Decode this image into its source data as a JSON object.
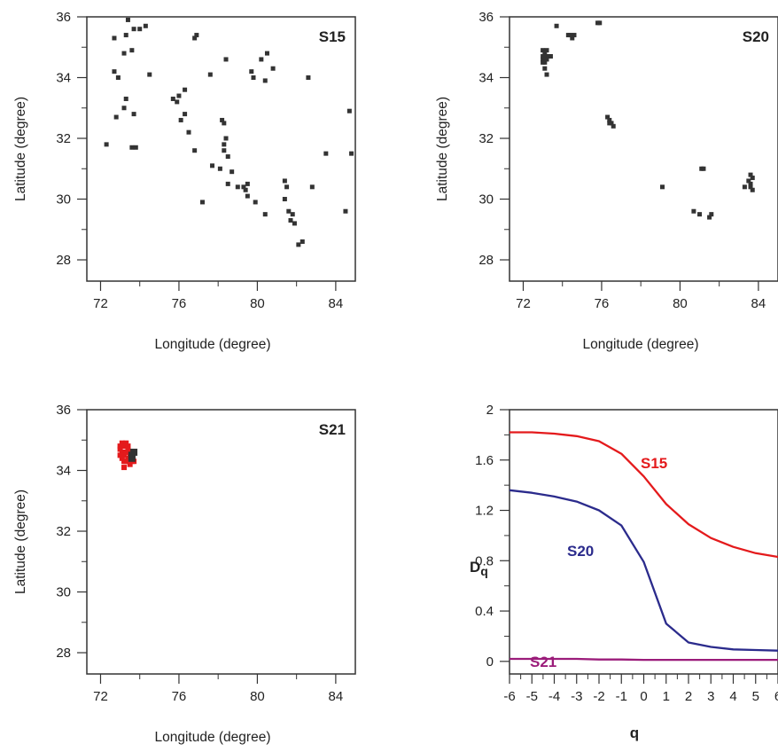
{
  "colors": {
    "axis": "#333333",
    "dot_dark": "#333333",
    "dot_red": "#e41a1c",
    "s15": "#e41a1c",
    "s20": "#2b2b8c",
    "s21": "#9b1c7a"
  },
  "chart_data": [
    {
      "type": "scatter",
      "title": "S15",
      "xlabel": "Longitude (degree)",
      "ylabel": "Latitude (degree)",
      "xlim": [
        71.3,
        85
      ],
      "ylim": [
        27.3,
        36
      ],
      "xticks": [
        "72",
        "76",
        "80",
        "84"
      ],
      "yticks": [
        "28",
        "30",
        "32",
        "34",
        "36"
      ],
      "grid": false,
      "points": [
        [
          73.4,
          35.9
        ],
        [
          73.7,
          35.6
        ],
        [
          74.3,
          35.7
        ],
        [
          74.0,
          35.6
        ],
        [
          72.7,
          35.3
        ],
        [
          73.3,
          35.4
        ],
        [
          73.6,
          34.9
        ],
        [
          73.2,
          34.8
        ],
        [
          76.8,
          35.3
        ],
        [
          76.9,
          35.4
        ],
        [
          80.5,
          34.8
        ],
        [
          80.2,
          34.6
        ],
        [
          78.4,
          34.6
        ],
        [
          79.7,
          34.2
        ],
        [
          79.8,
          34.0
        ],
        [
          80.8,
          34.3
        ],
        [
          82.6,
          34.0
        ],
        [
          72.7,
          34.2
        ],
        [
          72.9,
          34.0
        ],
        [
          74.5,
          34.1
        ],
        [
          77.6,
          34.1
        ],
        [
          80.4,
          33.9
        ],
        [
          76.3,
          33.6
        ],
        [
          75.7,
          33.3
        ],
        [
          75.9,
          33.2
        ],
        [
          76.0,
          33.4
        ],
        [
          73.3,
          33.3
        ],
        [
          73.2,
          33.0
        ],
        [
          73.7,
          32.8
        ],
        [
          76.3,
          32.8
        ],
        [
          72.8,
          32.7
        ],
        [
          76.1,
          32.6
        ],
        [
          78.2,
          32.6
        ],
        [
          78.3,
          32.5
        ],
        [
          84.7,
          32.9
        ],
        [
          76.5,
          32.2
        ],
        [
          78.4,
          32.0
        ],
        [
          78.3,
          31.8
        ],
        [
          72.3,
          31.8
        ],
        [
          73.6,
          31.7
        ],
        [
          73.8,
          31.7
        ],
        [
          76.8,
          31.6
        ],
        [
          78.3,
          31.6
        ],
        [
          78.5,
          31.4
        ],
        [
          83.5,
          31.5
        ],
        [
          84.8,
          31.5
        ],
        [
          77.7,
          31.1
        ],
        [
          78.1,
          31.0
        ],
        [
          78.7,
          30.9
        ],
        [
          81.4,
          30.6
        ],
        [
          78.5,
          30.5
        ],
        [
          79.3,
          30.4
        ],
        [
          79.4,
          30.3
        ],
        [
          79.5,
          30.1
        ],
        [
          81.5,
          30.4
        ],
        [
          82.8,
          30.4
        ],
        [
          79.0,
          30.4
        ],
        [
          79.5,
          30.5
        ],
        [
          81.4,
          30.0
        ],
        [
          79.9,
          29.9
        ],
        [
          77.2,
          29.9
        ],
        [
          81.6,
          29.6
        ],
        [
          81.8,
          29.5
        ],
        [
          81.7,
          29.3
        ],
        [
          81.9,
          29.2
        ],
        [
          80.4,
          29.5
        ],
        [
          84.5,
          29.6
        ],
        [
          82.1,
          28.5
        ],
        [
          82.3,
          28.6
        ]
      ]
    },
    {
      "type": "scatter",
      "title": "S20",
      "xlabel": "Longitude (degree)",
      "ylabel": "Latitude (degree)",
      "xlim": [
        71.3,
        85
      ],
      "ylim": [
        27.3,
        36
      ],
      "xticks": [
        "72",
        "76",
        "80",
        "84"
      ],
      "yticks": [
        "28",
        "30",
        "32",
        "34",
        "36"
      ],
      "grid": false,
      "points": [
        [
          75.8,
          35.8
        ],
        [
          75.9,
          35.8
        ],
        [
          73.7,
          35.7
        ],
        [
          74.3,
          35.4
        ],
        [
          74.5,
          35.3
        ],
        [
          74.6,
          35.4
        ],
        [
          74.4,
          35.4
        ],
        [
          73.0,
          34.9
        ],
        [
          73.1,
          34.8
        ],
        [
          73.2,
          34.7
        ],
        [
          73.0,
          34.6
        ],
        [
          73.1,
          34.5
        ],
        [
          73.3,
          34.7
        ],
        [
          73.0,
          34.7
        ],
        [
          73.2,
          34.6
        ],
        [
          73.1,
          34.3
        ],
        [
          73.2,
          34.1
        ],
        [
          73.4,
          34.7
        ],
        [
          73.2,
          34.9
        ],
        [
          73.0,
          34.5
        ],
        [
          76.3,
          32.7
        ],
        [
          76.4,
          32.6
        ],
        [
          76.5,
          32.5
        ],
        [
          76.6,
          32.4
        ],
        [
          76.4,
          32.5
        ],
        [
          81.1,
          31.0
        ],
        [
          81.2,
          31.0
        ],
        [
          79.1,
          30.4
        ],
        [
          83.3,
          30.4
        ],
        [
          83.6,
          30.8
        ],
        [
          83.7,
          30.7
        ],
        [
          83.5,
          30.6
        ],
        [
          83.6,
          30.5
        ],
        [
          83.7,
          30.3
        ],
        [
          83.6,
          30.4
        ],
        [
          80.7,
          29.6
        ],
        [
          81.0,
          29.5
        ],
        [
          81.6,
          29.5
        ],
        [
          81.5,
          29.4
        ]
      ]
    },
    {
      "type": "scatter",
      "title": "S21",
      "xlabel": "Longitude (degree)",
      "ylabel": "Latitude (degree)",
      "xlim": [
        71.3,
        85
      ],
      "ylim": [
        27.3,
        36
      ],
      "xticks": [
        "72",
        "76",
        "80",
        "84"
      ],
      "yticks": [
        "28",
        "30",
        "32",
        "34",
        "36"
      ],
      "grid": false,
      "red_points": [
        [
          73.1,
          34.9
        ],
        [
          73.2,
          34.8
        ],
        [
          73.0,
          34.7
        ],
        [
          73.1,
          34.6
        ],
        [
          73.3,
          34.9
        ],
        [
          73.4,
          34.8
        ],
        [
          73.2,
          34.5
        ],
        [
          73.0,
          34.5
        ],
        [
          73.5,
          34.6
        ],
        [
          73.4,
          34.4
        ],
        [
          73.6,
          34.3
        ],
        [
          73.3,
          34.3
        ],
        [
          73.2,
          34.1
        ],
        [
          73.5,
          34.2
        ],
        [
          73.7,
          34.3
        ],
        [
          73.1,
          34.4
        ],
        [
          73.6,
          34.6
        ],
        [
          73.0,
          34.8
        ],
        [
          73.4,
          34.7
        ],
        [
          73.2,
          34.3
        ],
        [
          73.5,
          34.5
        ],
        [
          73.3,
          34.6
        ]
      ],
      "points": [
        [
          73.6,
          34.5
        ],
        [
          73.7,
          34.6
        ],
        [
          73.6,
          34.4
        ]
      ]
    },
    {
      "type": "line",
      "title": "",
      "xlabel": "q",
      "ylabel": "Dq",
      "xlim": [
        -6,
        6
      ],
      "ylim": [
        -0.1,
        2
      ],
      "xticks": [
        "-6",
        "-5",
        "-4",
        "-3",
        "-2",
        "-1",
        "0",
        "1",
        "2",
        "3",
        "4",
        "5",
        "6"
      ],
      "yticks": [
        "0",
        "0.4",
        "0.8",
        "1.2",
        "1.6",
        "2"
      ],
      "grid": false,
      "x": [
        -6,
        -5,
        -4,
        -3,
        -2,
        -1,
        0,
        1,
        2,
        3,
        4,
        5,
        6
      ],
      "series": [
        {
          "name": "S15",
          "values": [
            1.82,
            1.82,
            1.81,
            1.79,
            1.75,
            1.65,
            1.47,
            1.25,
            1.09,
            0.98,
            0.91,
            0.86,
            0.83
          ]
        },
        {
          "name": "S20",
          "values": [
            1.36,
            1.34,
            1.31,
            1.27,
            1.2,
            1.08,
            0.79,
            0.3,
            0.15,
            0.115,
            0.095,
            0.09,
            0.085
          ]
        },
        {
          "name": "S21",
          "values": [
            0.02,
            0.02,
            0.02,
            0.02,
            0.015,
            0.015,
            0.012,
            0.012,
            0.012,
            0.012,
            0.012,
            0.012,
            0.012
          ]
        }
      ]
    }
  ]
}
